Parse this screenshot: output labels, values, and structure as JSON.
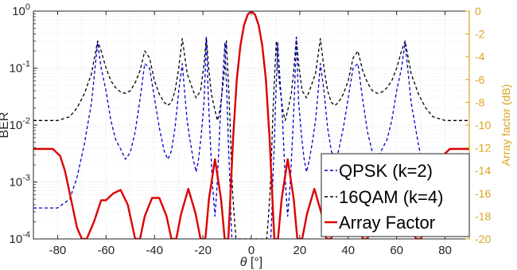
{
  "chart_data": {
    "type": "line",
    "title": "",
    "xlabel": "θ [°]",
    "ylabel_left": "BER",
    "ylabel_right": "Array factor (dB)",
    "xlim": [
      -90,
      90
    ],
    "ylim_left": [
      0.0001,
      1
    ],
    "ylim_right": [
      -20,
      0
    ],
    "yscale_left": "log",
    "grid": true,
    "legend_position": "bottom-right",
    "x_ticks": [
      "-80",
      "-60",
      "-40",
      "-20",
      "0",
      "20",
      "40",
      "60",
      "80"
    ],
    "y_left_ticks": [
      {
        "base": "10",
        "exp": "0",
        "value": 1
      },
      {
        "base": "10",
        "exp": "-1",
        "value": 0.1
      },
      {
        "base": "10",
        "exp": "-2",
        "value": 0.01
      },
      {
        "base": "10",
        "exp": "-3",
        "value": 0.001
      },
      {
        "base": "10",
        "exp": "-4",
        "value": 0.0001
      }
    ],
    "y_right_ticks": [
      "0",
      "-2",
      "-4",
      "-6",
      "-8",
      "-10",
      "-12",
      "-14",
      "-16",
      "-18",
      "-20"
    ],
    "series": [
      {
        "name": "QPSK (k=2)",
        "axis": "left",
        "color": "#0000cc",
        "dash": "dashed",
        "x": [
          -90,
          -80,
          -75,
          -72,
          -69,
          -66,
          -63.5,
          -62,
          -60,
          -58,
          -56,
          -54,
          -52,
          -50,
          -48,
          -46,
          -44,
          -42,
          -40,
          -38,
          -36,
          -34.5,
          -33,
          -31.5,
          -30,
          -28.5,
          -27.5,
          -26.5,
          -25.5,
          -24,
          -22.8,
          -21.8,
          -20.8,
          -19.5,
          -18.6,
          -17.8,
          -17,
          -16,
          -15,
          -14.2,
          -13.4,
          -12.8,
          -12,
          -11.4,
          -10.9,
          -10.5,
          -10,
          -9.5,
          -9,
          -8.6,
          -8.3,
          -8,
          8,
          8.3,
          8.6,
          9,
          9.5,
          10,
          10.5,
          10.9,
          11.4,
          12,
          12.8,
          13.4,
          14.2,
          15,
          16,
          17,
          17.8,
          18.6,
          19.5,
          20.8,
          21.8,
          22.8,
          24,
          25.5,
          26.5,
          27.5,
          28.5,
          30,
          31.5,
          33,
          34.5,
          36,
          38,
          40,
          42,
          44,
          46,
          48,
          50,
          52,
          54,
          56,
          58,
          60,
          62,
          63.5,
          66,
          69,
          72,
          75,
          80,
          90
        ],
        "y": [
          0.00035,
          0.00035,
          0.0005,
          0.0012,
          0.0045,
          0.025,
          0.28,
          0.1,
          0.04,
          0.012,
          0.0055,
          0.0038,
          0.0025,
          0.0033,
          0.0075,
          0.028,
          0.12,
          0.1,
          0.03,
          0.009,
          0.0035,
          0.0025,
          0.0035,
          0.009,
          0.04,
          0.12,
          0.035,
          0.012,
          0.006,
          0.0025,
          0.0015,
          0.0025,
          0.006,
          0.025,
          0.35,
          0.035,
          0.006,
          0.00085,
          0.00025,
          0.0008,
          0.004,
          0.015,
          0.05,
          0.13,
          0.28,
          0.09,
          0.025,
          0.005,
          0.0015,
          0.00045,
          0.00018,
          0.0001,
          0.0001,
          0.00018,
          0.00045,
          0.0015,
          0.005,
          0.025,
          0.09,
          0.28,
          0.13,
          0.05,
          0.015,
          0.004,
          0.0008,
          0.00025,
          0.00085,
          0.006,
          0.035,
          0.35,
          0.025,
          0.006,
          0.0025,
          0.0015,
          0.0025,
          0.006,
          0.012,
          0.035,
          0.12,
          0.04,
          0.009,
          0.0035,
          0.0025,
          0.0035,
          0.009,
          0.03,
          0.1,
          0.12,
          0.028,
          0.0075,
          0.0033,
          0.0025,
          0.0038,
          0.0055,
          0.012,
          0.04,
          0.1,
          0.28,
          0.025,
          0.0045,
          0.0012,
          0.0005,
          0.00035,
          0.00035
        ]
      },
      {
        "name": "16QAM (k=4)",
        "axis": "left",
        "color": "#000000",
        "dash": "dashed",
        "x": [
          -90,
          -80,
          -75,
          -72,
          -69,
          -66,
          -63.5,
          -62,
          -60,
          -58,
          -56,
          -54,
          -52,
          -50,
          -48,
          -46,
          -44,
          -42,
          -40,
          -38,
          -36,
          -34.5,
          -33,
          -31.5,
          -30,
          -28.5,
          -26.5,
          -24,
          -22.8,
          -21,
          -19.5,
          -18.6,
          -17.5,
          -16.5,
          -15,
          -14,
          -13,
          -12,
          -11,
          -10.3,
          -9.5,
          -8.8,
          -8.2,
          -7.7,
          -7.2,
          -6.7,
          -6.3,
          6.3,
          6.7,
          7.2,
          7.7,
          8.2,
          8.8,
          9.5,
          10.3,
          11,
          12,
          13,
          14,
          15,
          16.5,
          17.5,
          18.6,
          19.5,
          21,
          22.8,
          24,
          26.5,
          28.5,
          30,
          31.5,
          33,
          34.5,
          36,
          38,
          40,
          42,
          44,
          46,
          48,
          50,
          52,
          54,
          56,
          58,
          60,
          62,
          63.5,
          66,
          69,
          72,
          75,
          80,
          90
        ],
        "y": [
          0.012,
          0.012,
          0.014,
          0.02,
          0.035,
          0.08,
          0.3,
          0.2,
          0.1,
          0.06,
          0.045,
          0.038,
          0.036,
          0.04,
          0.055,
          0.09,
          0.2,
          0.15,
          0.06,
          0.035,
          0.025,
          0.022,
          0.025,
          0.04,
          0.1,
          0.33,
          0.08,
          0.04,
          0.03,
          0.04,
          0.12,
          0.35,
          0.09,
          0.035,
          0.018,
          0.012,
          0.018,
          0.04,
          0.1,
          0.3,
          0.06,
          0.012,
          0.002,
          0.0006,
          0.0003,
          0.00015,
          0.0001,
          0.0001,
          0.00015,
          0.0003,
          0.0006,
          0.002,
          0.012,
          0.06,
          0.3,
          0.1,
          0.04,
          0.018,
          0.012,
          0.018,
          0.035,
          0.09,
          0.35,
          0.12,
          0.04,
          0.03,
          0.04,
          0.08,
          0.33,
          0.1,
          0.04,
          0.025,
          0.022,
          0.025,
          0.035,
          0.06,
          0.15,
          0.2,
          0.09,
          0.055,
          0.04,
          0.036,
          0.038,
          0.045,
          0.06,
          0.1,
          0.2,
          0.3,
          0.08,
          0.035,
          0.02,
          0.014,
          0.012,
          0.012
        ]
      },
      {
        "name": "Array Factor",
        "axis": "right",
        "color": "#dd0000",
        "dash": "solid",
        "x": [
          -90,
          -82,
          -79,
          -77,
          -75,
          -72,
          -70,
          -68,
          -65,
          -62,
          -60,
          -57,
          -54,
          -51,
          -48,
          -46,
          -44,
          -41,
          -38,
          -35,
          -33,
          -31,
          -29,
          -26,
          -23,
          -21,
          -19,
          -17.5,
          -15,
          -12.5,
          -11,
          -9.5,
          -7.5,
          -6,
          -4.5,
          -3,
          -1.5,
          0,
          1.5,
          3,
          4.5,
          6,
          7.5,
          9.5,
          11,
          12.5,
          15,
          17.5,
          19,
          21,
          23,
          26,
          29,
          31,
          33,
          35,
          38,
          41,
          44,
          46,
          48,
          51,
          54,
          57,
          60,
          62,
          65,
          68,
          70,
          72,
          75,
          77,
          79,
          82,
          90
        ],
        "y": [
          -12.1,
          -12.1,
          -12.7,
          -14.0,
          -16.0,
          -19.0,
          -20.0,
          -20.0,
          -18.5,
          -16.6,
          -16.6,
          -16.0,
          -15.7,
          -17.0,
          -20.0,
          -20.0,
          -18.0,
          -16.4,
          -16.4,
          -18.0,
          -20.0,
          -20.0,
          -17.8,
          -15.6,
          -17.8,
          -20.0,
          -20.0,
          -16.5,
          -13.0,
          -16.5,
          -20.0,
          -20.0,
          -11.0,
          -6.0,
          -3.0,
          -1.2,
          -0.3,
          0,
          -0.3,
          -1.2,
          -3.0,
          -6.0,
          -11.0,
          -20.0,
          -20.0,
          -16.5,
          -13.0,
          -16.5,
          -20.0,
          -20.0,
          -17.8,
          -15.6,
          -17.8,
          -20.0,
          -20.0,
          -18.0,
          -16.4,
          -16.4,
          -18.0,
          -20.0,
          -20.0,
          -17.0,
          -15.7,
          -16.0,
          -16.6,
          -16.6,
          -18.5,
          -20.0,
          -20.0,
          -19.0,
          -16.0,
          -14.0,
          -12.7,
          -12.1,
          -12.1
        ]
      }
    ]
  }
}
